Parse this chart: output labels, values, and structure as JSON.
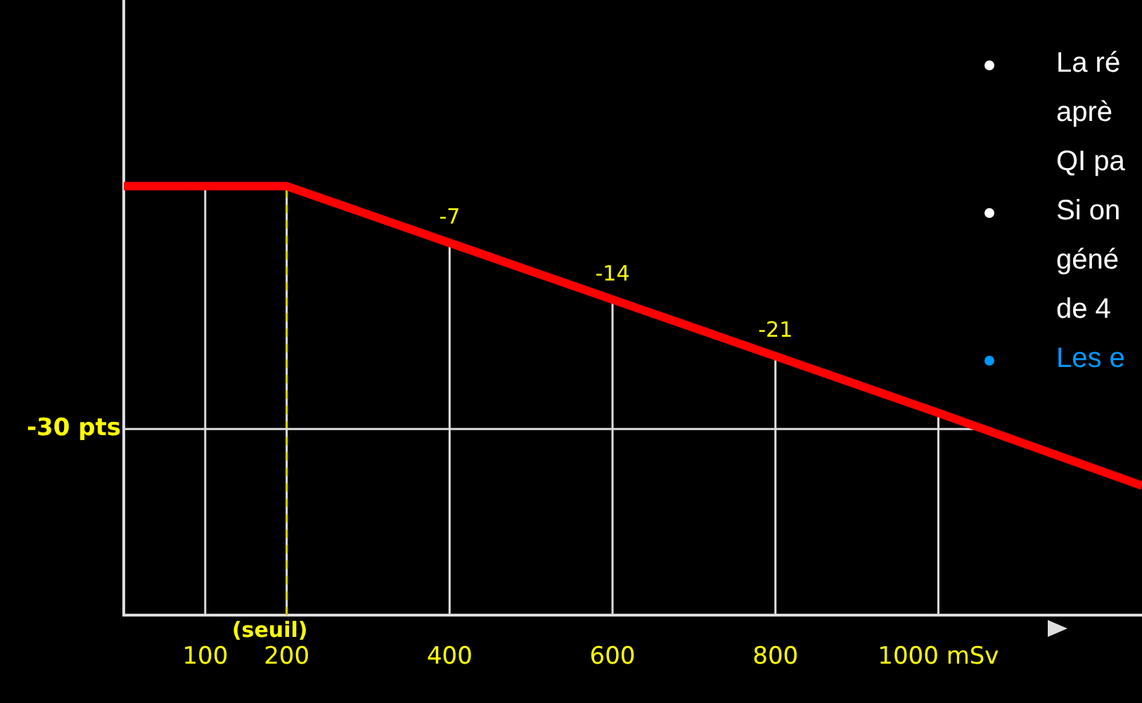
{
  "chart_data": {
    "type": "line",
    "x": [
      0,
      200,
      400,
      600,
      800,
      1000,
      1250
    ],
    "series": [
      {
        "color": "#ff0000",
        "values": [
          0,
          0,
          -7,
          -14,
          -21,
          -28,
          -37
        ],
        "value_labels": [
          null,
          null,
          "-7",
          "-14",
          "-21",
          null,
          null
        ]
      }
    ],
    "xlim": [
      0,
      1250
    ],
    "xticks": [
      100,
      200,
      400,
      600,
      800,
      {
        "value": 1000,
        "label": "1000 mSv"
      }
    ],
    "ylim": [
      -53,
      23
    ],
    "legend": false,
    "marker": "none",
    "line_style": "solid",
    "ref_lines": [
      {
        "axis": "x",
        "value": 100,
        "color": "#dddddd",
        "line_style": "solid"
      },
      {
        "axis": "x",
        "value": 200,
        "color": "#dddddd",
        "line_style": "solid"
      },
      {
        "axis": "x",
        "value": 400,
        "color": "#dddddd",
        "line_style": "solid"
      },
      {
        "axis": "x",
        "value": 600,
        "color": "#dddddd",
        "line_style": "solid"
      },
      {
        "axis": "x",
        "value": 800,
        "color": "#dddddd",
        "line_style": "solid"
      },
      {
        "axis": "x",
        "value": 1000,
        "color": "#dddddd",
        "line_style": "solid"
      },
      {
        "axis": "x",
        "value": 200,
        "label": "(seuil)",
        "color": "#cccc00",
        "line_style": "dashed"
      },
      {
        "axis": "y",
        "value": -30,
        "label": "-30 pts",
        "color": "#dddddd",
        "line_style": "solid"
      }
    ],
    "annotations": [
      "La ré\naprè\nQI pa",
      "Si on\ngéné\nde 4",
      "Les e"
    ]
  }
}
